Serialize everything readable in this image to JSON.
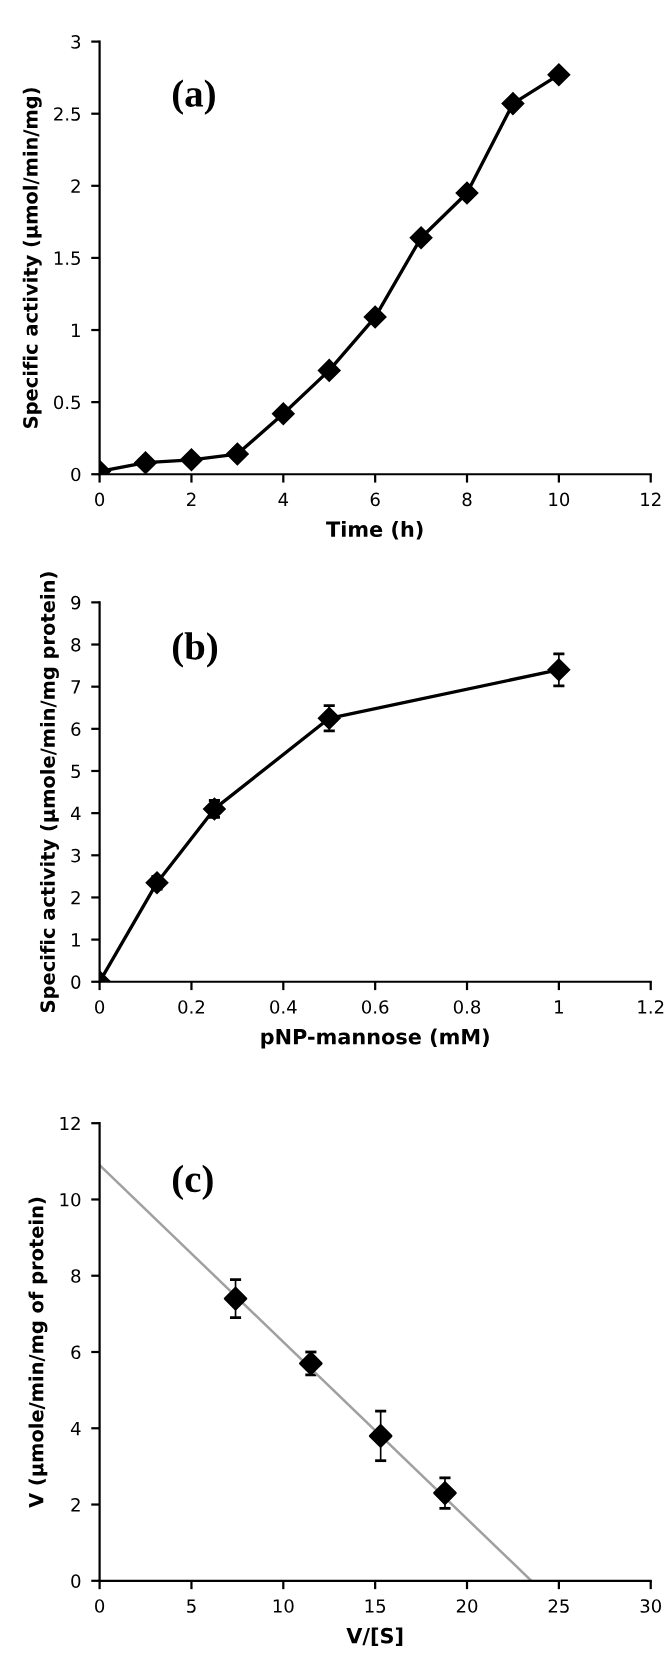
{
  "chart_data": [
    {
      "type": "line",
      "xlabel": "Time (h)",
      "ylabel": "Specific activity (μmol/min/mg)",
      "annotations": [
        "(a)"
      ],
      "x": [
        0,
        1,
        2,
        3,
        4,
        5,
        6,
        7,
        8,
        9,
        10
      ],
      "series": [
        {
          "color": "#000000",
          "values": [
            0.02,
            0.08,
            0.1,
            0.14,
            0.42,
            0.72,
            1.09,
            1.64,
            1.95,
            2.57,
            2.77
          ]
        }
      ],
      "xlim": [
        0,
        12
      ],
      "xticks": [
        0,
        2,
        4,
        6,
        8,
        10,
        12
      ],
      "ylim": [
        0,
        3
      ],
      "yticks": [
        0,
        0.5,
        1,
        1.5,
        2,
        2.5,
        3
      ],
      "marker": "diamond",
      "line_style": "solid",
      "grid": false,
      "legend": false
    },
    {
      "type": "line",
      "xlabel": "pNP-mannose (mM)",
      "ylabel": "Specific activity (μmole/min/mg protein)",
      "annotations": [
        "(b)"
      ],
      "x": [
        0,
        0.125,
        0.25,
        0.5,
        1
      ],
      "series": [
        {
          "color": "#000000",
          "values": [
            0,
            2.35,
            4.1,
            6.25,
            7.4
          ],
          "errors": [
            null,
            0.15,
            0.2,
            0.3,
            0.38
          ]
        }
      ],
      "xlim": [
        0,
        1.2
      ],
      "xticks": [
        0,
        0.2,
        0.4,
        0.6,
        0.8,
        1,
        1.2
      ],
      "ylim": [
        0,
        9
      ],
      "yticks": [
        0,
        1,
        2,
        3,
        4,
        5,
        6,
        7,
        8,
        9
      ],
      "marker": "diamond",
      "line_style": "solid",
      "grid": false,
      "legend": false
    },
    {
      "type": "scatter",
      "xlabel": "V/[S]",
      "ylabel": "V (μmole/min/mg of protein)",
      "annotations": [
        "(c)"
      ],
      "series": [
        {
          "type": "scatter",
          "marker": "diamond",
          "color": "#000000",
          "x": [
            7.4,
            11.5,
            15.3,
            18.8
          ],
          "values": [
            7.4,
            5.7,
            3.8,
            2.3
          ],
          "errors": [
            0.5,
            0.3,
            0.65,
            0.4
          ]
        },
        {
          "type": "line",
          "marker": "none",
          "color": "#a0a0a0",
          "x": [
            0,
            23.5
          ],
          "values": [
            10.9,
            0
          ]
        }
      ],
      "xlim": [
        0,
        30
      ],
      "xticks": [
        0,
        5,
        10,
        15,
        20,
        25,
        30
      ],
      "ylim": [
        0,
        12
      ],
      "yticks": [
        0,
        2,
        4,
        6,
        8,
        10,
        12
      ],
      "grid": false,
      "legend": false
    }
  ]
}
